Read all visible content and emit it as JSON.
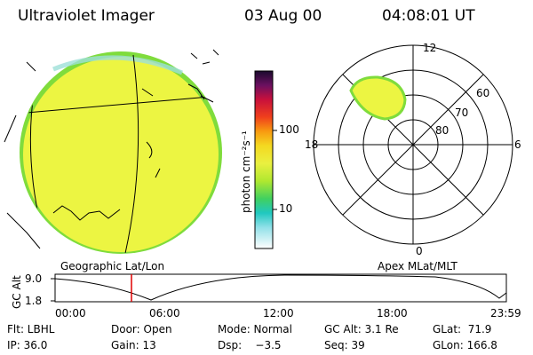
{
  "header": {
    "instrument": "Ultraviolet Imager",
    "date": "03 Aug 00",
    "time": "04:08:01 UT"
  },
  "colorbar": {
    "unit_label": "photon cm⁻²s⁻¹",
    "tick_100": "100",
    "tick_10": "10"
  },
  "polar_plot": {
    "mlt_top": "12",
    "mlt_left": "18",
    "mlt_right": "6",
    "mlt_bottom": "0",
    "lat_60": "60",
    "lat_70": "70",
    "lat_80": "80"
  },
  "labels": {
    "geo": "Geographic Lat/Lon",
    "apex": "Apex MLat/MLT"
  },
  "alt_plot": {
    "axis_label": "GC Alt",
    "y_max": "9.0",
    "y_min": "1.8",
    "x_ticks": [
      "00:00",
      "06:00",
      "12:00",
      "18:00",
      "23:59"
    ]
  },
  "status": {
    "flt": "Flt: LBHL",
    "ip": "IP: 36.0",
    "door": "Door: Open",
    "gain": "Gain: 13",
    "mode": "Mode: Normal",
    "dsp": "Dsp:    −3.5",
    "gcalt": "GC Alt: 3.1 Re",
    "seq": "Seq: 39",
    "glat": "GLat:  71.9",
    "glon": "GLon: 166.8"
  },
  "colors": {
    "emission": "#ecf542",
    "emission_edge": "#7fdc3c",
    "marker": "#e00000"
  }
}
